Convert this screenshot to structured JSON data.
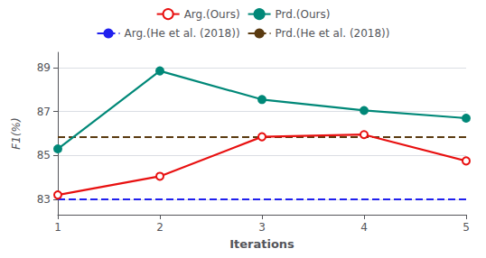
{
  "chart_data": {
    "type": "line",
    "xlabel": "Iterations",
    "ylabel": "F1(%)",
    "x": [
      1,
      2,
      3,
      4,
      5
    ],
    "xlim": [
      1,
      5
    ],
    "xticks": [
      1,
      2,
      3,
      4,
      5
    ],
    "ylim": [
      82.3,
      89.7
    ],
    "yticks": [
      83,
      85,
      87,
      89
    ],
    "grid": true,
    "legend": "top",
    "series": [
      {
        "name": "Arg.(Ours)",
        "color": "#e81010",
        "marker": "open_circle",
        "line_style": "solid",
        "values": [
          83.2,
          84.05,
          85.85,
          85.95,
          84.75
        ]
      },
      {
        "name": "Prd.(Ours)",
        "color": "#008878",
        "marker": "circle",
        "line_style": "solid",
        "values": [
          85.3,
          88.85,
          87.55,
          87.05,
          86.7
        ]
      },
      {
        "name": "Arg.(He et al. (2018))",
        "type": "hline",
        "color": "#2020ee",
        "line_style": "dashed",
        "value": 83.02
      },
      {
        "name": "Prd.(He et al. (2018))",
        "type": "hline",
        "color": "#5a3a10",
        "line_style": "dashed",
        "value": 85.85
      }
    ]
  }
}
